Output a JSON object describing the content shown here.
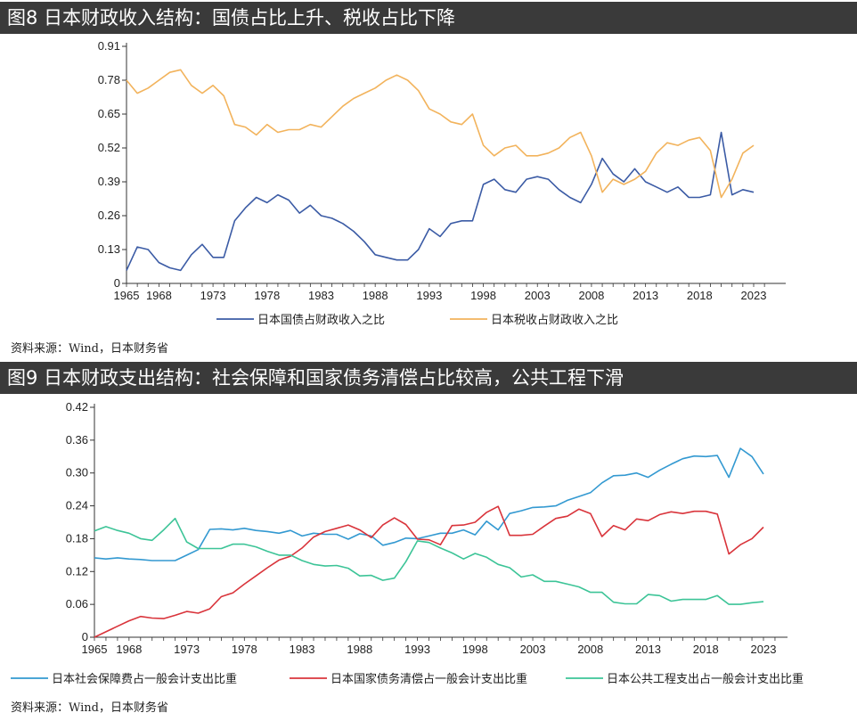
{
  "fig8": {
    "title": "图8  日本财政收入结构：国债占比上升、税收占比下降",
    "source": "资料来源：Wind，日本财务省"
  },
  "fig9": {
    "title": "图9  日本财政支出结构：社会保障和国家债务清偿占比较高，公共工程下滑",
    "source": "资料来源：Wind，日本财务省"
  },
  "chart_data": [
    {
      "type": "line",
      "title": "图8  日本财政收入结构：国债占比上升、税收占比下降",
      "xlabel": "",
      "ylabel": "",
      "xlim": [
        1965,
        2023
      ],
      "ylim": [
        0,
        0.91
      ],
      "y_ticks": [
        "0",
        "0.13",
        "0.26",
        "0.39",
        "0.52",
        "0.65",
        "0.78",
        "0.91"
      ],
      "x_ticks": [
        "1965",
        "1968",
        "1973",
        "1978",
        "1983",
        "1988",
        "1993",
        "1998",
        "2003",
        "2008",
        "2013",
        "2018",
        "2023"
      ],
      "grid": false,
      "legend_position": "bottom",
      "x": [
        1965,
        1966,
        1967,
        1968,
        1969,
        1970,
        1971,
        1972,
        1973,
        1974,
        1975,
        1976,
        1977,
        1978,
        1979,
        1980,
        1981,
        1982,
        1983,
        1984,
        1985,
        1986,
        1987,
        1988,
        1989,
        1990,
        1991,
        1992,
        1993,
        1994,
        1995,
        1996,
        1997,
        1998,
        1999,
        2000,
        2001,
        2002,
        2003,
        2004,
        2005,
        2006,
        2007,
        2008,
        2009,
        2010,
        2011,
        2012,
        2013,
        2014,
        2015,
        2016,
        2017,
        2018,
        2019,
        2020,
        2021,
        2022,
        2023
      ],
      "series": [
        {
          "name": "日本国债占财政收入之比",
          "color": "#3b5ba5",
          "values": [
            0.05,
            0.14,
            0.13,
            0.08,
            0.06,
            0.05,
            0.11,
            0.15,
            0.1,
            0.1,
            0.24,
            0.29,
            0.33,
            0.31,
            0.34,
            0.32,
            0.27,
            0.3,
            0.26,
            0.25,
            0.23,
            0.2,
            0.16,
            0.11,
            0.1,
            0.09,
            0.09,
            0.13,
            0.21,
            0.18,
            0.23,
            0.24,
            0.24,
            0.38,
            0.4,
            0.36,
            0.35,
            0.4,
            0.41,
            0.4,
            0.36,
            0.33,
            0.31,
            0.38,
            0.48,
            0.42,
            0.39,
            0.44,
            0.39,
            0.37,
            0.35,
            0.37,
            0.33,
            0.33,
            0.34,
            0.58,
            0.34,
            0.36,
            0.35
          ]
        },
        {
          "name": "日本税收占财政收入之比",
          "color": "#f2b35c",
          "values": [
            0.78,
            0.73,
            0.75,
            0.78,
            0.81,
            0.82,
            0.76,
            0.73,
            0.76,
            0.72,
            0.61,
            0.6,
            0.57,
            0.61,
            0.58,
            0.59,
            0.59,
            0.61,
            0.6,
            0.64,
            0.68,
            0.71,
            0.73,
            0.75,
            0.78,
            0.8,
            0.78,
            0.74,
            0.67,
            0.65,
            0.62,
            0.61,
            0.65,
            0.53,
            0.49,
            0.52,
            0.53,
            0.49,
            0.49,
            0.5,
            0.52,
            0.56,
            0.58,
            0.49,
            0.35,
            0.4,
            0.38,
            0.4,
            0.43,
            0.5,
            0.54,
            0.53,
            0.55,
            0.56,
            0.51,
            0.33,
            0.4,
            0.5,
            0.53
          ]
        }
      ]
    },
    {
      "type": "line",
      "title": "图9  日本财政支出结构：社会保障和国家债务清偿占比较高，公共工程下滑",
      "xlabel": "",
      "ylabel": "",
      "xlim": [
        1965,
        2023
      ],
      "ylim": [
        0,
        0.42
      ],
      "y_ticks": [
        "0",
        "0.06",
        "0.12",
        "0.18",
        "0.24",
        "0.30",
        "0.36",
        "0.42"
      ],
      "x_ticks": [
        "1965",
        "1968",
        "1973",
        "1978",
        "1983",
        "1988",
        "1993",
        "1998",
        "2003",
        "2008",
        "2013",
        "2018",
        "2023"
      ],
      "grid": false,
      "legend_position": "bottom",
      "x": [
        1965,
        1966,
        1967,
        1968,
        1969,
        1970,
        1971,
        1972,
        1973,
        1974,
        1975,
        1976,
        1977,
        1978,
        1979,
        1980,
        1981,
        1982,
        1983,
        1984,
        1985,
        1986,
        1987,
        1988,
        1989,
        1990,
        1991,
        1992,
        1993,
        1994,
        1995,
        1996,
        1997,
        1998,
        1999,
        2000,
        2001,
        2002,
        2003,
        2004,
        2005,
        2006,
        2007,
        2008,
        2009,
        2010,
        2011,
        2012,
        2013,
        2014,
        2015,
        2016,
        2017,
        2018,
        2019,
        2020,
        2021,
        2022,
        2023
      ],
      "series": [
        {
          "name": "日本社会保障费占一般会计支出比重",
          "color": "#3399d1",
          "values": [
            0.145,
            0.143,
            0.145,
            0.143,
            0.142,
            0.14,
            0.14,
            0.14,
            0.15,
            0.16,
            0.197,
            0.198,
            0.196,
            0.199,
            0.195,
            0.193,
            0.19,
            0.195,
            0.185,
            0.19,
            0.188,
            0.188,
            0.179,
            0.189,
            0.185,
            0.168,
            0.173,
            0.181,
            0.18,
            0.185,
            0.19,
            0.19,
            0.196,
            0.187,
            0.212,
            0.196,
            0.226,
            0.231,
            0.237,
            0.238,
            0.24,
            0.25,
            0.257,
            0.264,
            0.282,
            0.295,
            0.296,
            0.3,
            0.292,
            0.305,
            0.316,
            0.326,
            0.331,
            0.33,
            0.332,
            0.292,
            0.345,
            0.33,
            0.298
          ]
        },
        {
          "name": "日本国家债务清偿占一般会计支出比重",
          "color": "#d9343b",
          "values": [
            0.0,
            0.01,
            0.02,
            0.03,
            0.038,
            0.035,
            0.034,
            0.04,
            0.047,
            0.044,
            0.052,
            0.074,
            0.081,
            0.097,
            0.112,
            0.127,
            0.141,
            0.148,
            0.163,
            0.183,
            0.193,
            0.199,
            0.205,
            0.196,
            0.182,
            0.205,
            0.218,
            0.206,
            0.179,
            0.178,
            0.169,
            0.204,
            0.205,
            0.21,
            0.228,
            0.239,
            0.186,
            0.186,
            0.188,
            0.203,
            0.217,
            0.221,
            0.234,
            0.226,
            0.184,
            0.204,
            0.196,
            0.216,
            0.213,
            0.224,
            0.229,
            0.226,
            0.23,
            0.23,
            0.225,
            0.152,
            0.169,
            0.18,
            0.201
          ]
        },
        {
          "name": "日本公共工程支出占一般会计支出比重",
          "color": "#3cc497",
          "values": [
            0.194,
            0.202,
            0.195,
            0.19,
            0.18,
            0.177,
            0.196,
            0.217,
            0.174,
            0.162,
            0.162,
            0.162,
            0.17,
            0.17,
            0.165,
            0.157,
            0.15,
            0.15,
            0.14,
            0.133,
            0.13,
            0.131,
            0.126,
            0.112,
            0.113,
            0.104,
            0.108,
            0.138,
            0.176,
            0.173,
            0.163,
            0.154,
            0.143,
            0.153,
            0.146,
            0.133,
            0.127,
            0.11,
            0.114,
            0.102,
            0.102,
            0.097,
            0.092,
            0.082,
            0.082,
            0.064,
            0.061,
            0.061,
            0.078,
            0.076,
            0.066,
            0.069,
            0.069,
            0.069,
            0.076,
            0.06,
            0.06,
            0.063,
            0.065
          ]
        }
      ]
    }
  ]
}
